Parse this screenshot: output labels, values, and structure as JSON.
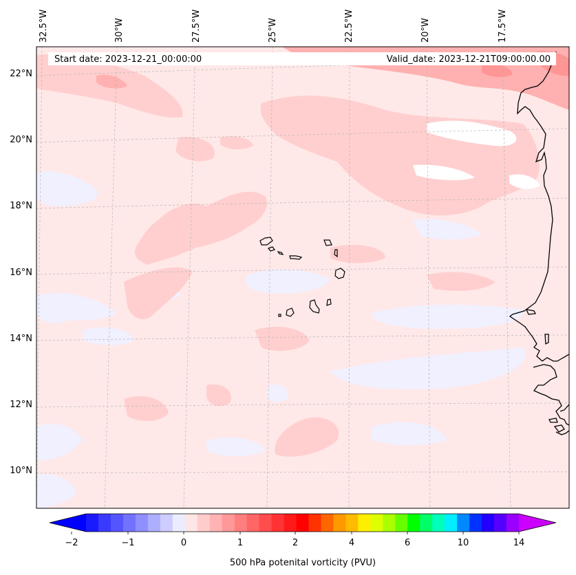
{
  "header": {
    "start_date": "Start date: 2023-12-21_00:00:00",
    "valid_date": "Valid_date: 2023-12-21T09:00:00.00"
  },
  "lon_labels": [
    "32.5°W",
    "30°W",
    "27.5°W",
    "25°W",
    "22.5°W",
    "20°W",
    "17.5°W"
  ],
  "lat_labels": [
    "22°N",
    "20°N",
    "18°N",
    "16°N",
    "14°N",
    "12°N",
    "10°N"
  ],
  "colorbar": {
    "title": "500 hPa potenital vorticity (PVU)",
    "ticks": [
      "−2",
      "−1",
      "0",
      "1",
      "2",
      "4",
      "6",
      "10",
      "14"
    ],
    "colors": [
      "#1a1aff",
      "#3a3aff",
      "#5555ff",
      "#7272ff",
      "#8f8fff",
      "#aeaeff",
      "#cdcdff",
      "#ececff",
      "#ffe6e6",
      "#ffcccc",
      "#ffb3b3",
      "#ff9999",
      "#ff7f7f",
      "#ff6666",
      "#ff4c4c",
      "#ff3333",
      "#ff1a1a",
      "#ff0000",
      "#ff3300",
      "#ff6600",
      "#ff9900",
      "#ffbb00",
      "#ffee00",
      "#ddff00",
      "#aaff00",
      "#66ff00",
      "#00ff00",
      "#00ff66",
      "#00ffbb",
      "#00eeff",
      "#0088ff",
      "#0033ff",
      "#2200ff",
      "#5500ff",
      "#9900ff"
    ],
    "extend_low_color": "#0000ff",
    "extend_high_color": "#cc00ff"
  }
}
